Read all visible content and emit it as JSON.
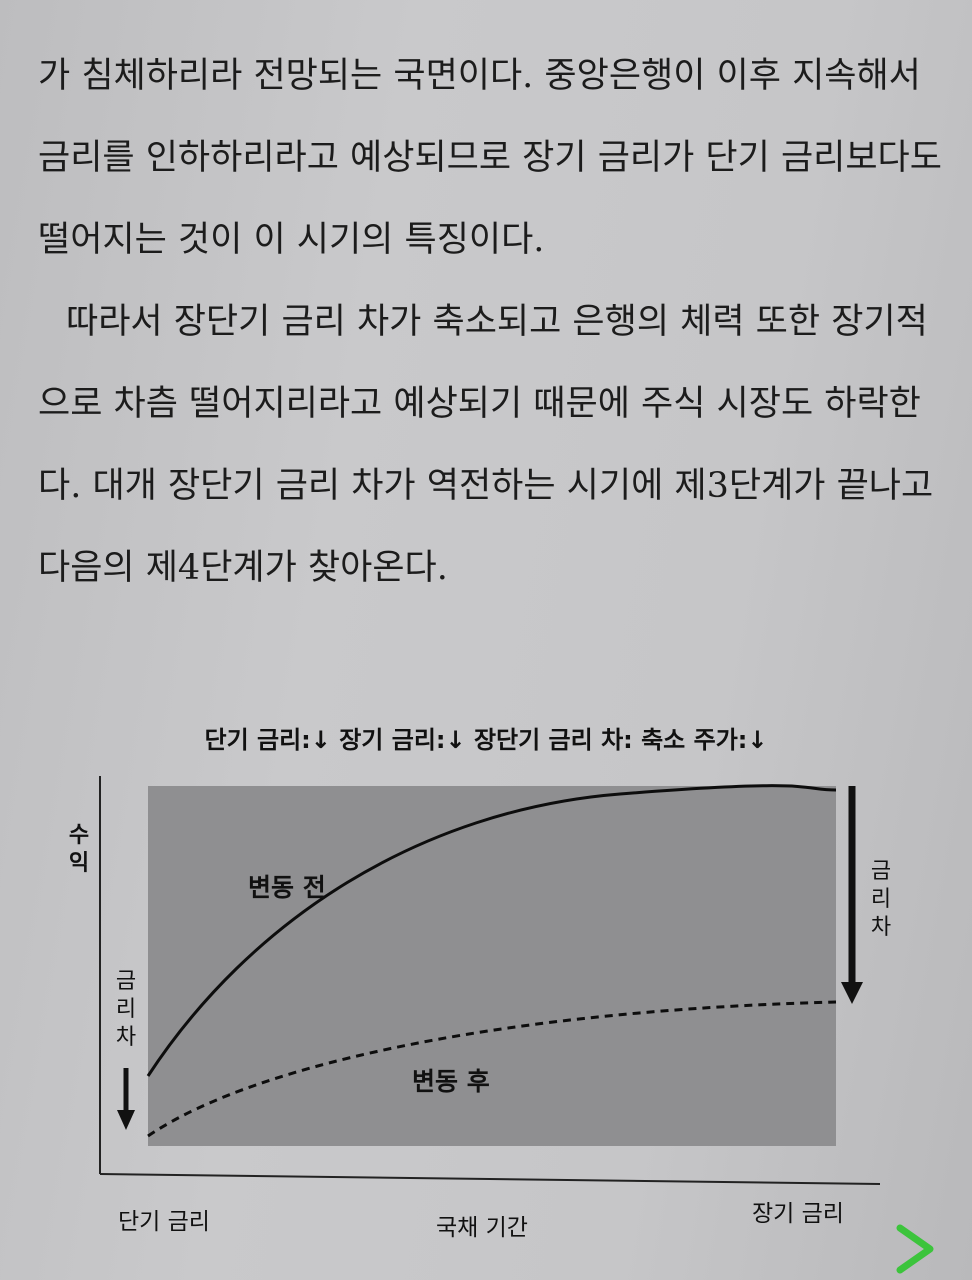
{
  "body_text": {
    "lines": [
      "가 침체하리라 전망되는 국면이다. 중앙은행이 이후 지속해서",
      "금리를 인하하리라고 예상되므로 장기 금리가 단기 금리보다도",
      "떨어지는 것이 이 시기의 특징이다.",
      "따라서 장단기 금리 차가 축소되고 은행의 체력 또한 장기적",
      "으로 차츰 떨어지리라고 예상되기 때문에 주식 시장도 하락한",
      "다. 대개 장단기 금리 차가 역전하는 시기에 제3단계가 끝나고",
      "다음의 제4단계가 찾아온다."
    ]
  },
  "figure": {
    "caption": "단기 금리:↓ 장기 금리:↓ 장단기 금리 차: 축소 주가:↓",
    "y_axis_label": "수익",
    "left_gap_label": "금리차",
    "right_gap_label": "금리차",
    "curve_before_label": "변동 전",
    "curve_after_label": "변동 후",
    "x_left_label": "단기 금리",
    "x_center_label": "국채 기간",
    "x_right_label": "장기 금리",
    "colors": {
      "plot_fill": "#8f8f91",
      "curve": "#0d0d0d",
      "next_arrow": "#3cc43c"
    }
  },
  "nav": {
    "next_icon": "chevron-right-icon"
  }
}
